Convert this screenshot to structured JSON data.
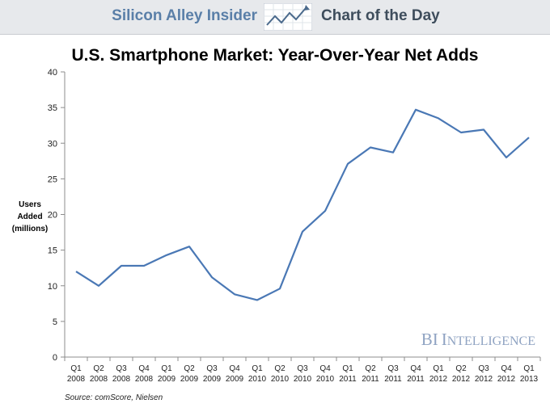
{
  "header": {
    "left_text": "Silicon Alley Insider",
    "right_text": "Chart of the Day",
    "logo_icon": "trend-chart-icon"
  },
  "chart_data": {
    "type": "line",
    "title": "U.S. Smartphone Market: Year-Over-Year Net Adds",
    "ylabel_lines": [
      "Users",
      "Added",
      "(millions)"
    ],
    "xlabel": "",
    "categories": [
      [
        "Q1",
        "2008"
      ],
      [
        "Q2",
        "2008"
      ],
      [
        "Q3",
        "2008"
      ],
      [
        "Q4",
        "2008"
      ],
      [
        "Q1",
        "2009"
      ],
      [
        "Q2",
        "2009"
      ],
      [
        "Q3",
        "2009"
      ],
      [
        "Q4",
        "2009"
      ],
      [
        "Q1",
        "2010"
      ],
      [
        "Q2",
        "2010"
      ],
      [
        "Q3",
        "2010"
      ],
      [
        "Q4",
        "2010"
      ],
      [
        "Q1",
        "2011"
      ],
      [
        "Q2",
        "2011"
      ],
      [
        "Q3",
        "2011"
      ],
      [
        "Q4",
        "2011"
      ],
      [
        "Q1",
        "2012"
      ],
      [
        "Q2",
        "2012"
      ],
      [
        "Q3",
        "2012"
      ],
      [
        "Q4",
        "2012"
      ],
      [
        "Q1",
        "2013"
      ]
    ],
    "values": [
      12.0,
      10.0,
      12.8,
      12.8,
      14.3,
      15.5,
      11.2,
      8.8,
      8.0,
      9.6,
      17.6,
      20.5,
      27.1,
      29.4,
      28.7,
      34.7,
      33.5,
      31.5,
      31.9,
      28.0,
      30.8
    ],
    "ylim": [
      0,
      40
    ],
    "yticks": [
      0,
      5,
      10,
      15,
      20,
      25,
      30,
      35,
      40
    ],
    "grid": false,
    "line_color": "#4a78b5",
    "source": "Source: comScore, Nielsen",
    "watermark": {
      "first": "BI",
      "second_initial": "I",
      "second_rest": "NTELLIGENCE"
    }
  }
}
